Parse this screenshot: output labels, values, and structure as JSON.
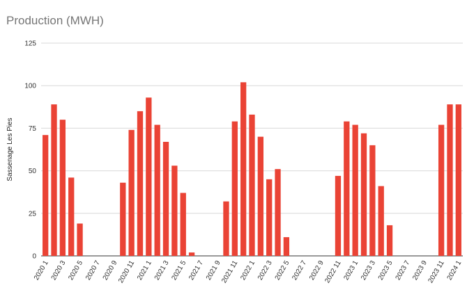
{
  "chart_data": {
    "type": "bar",
    "title": "Production (MWH)",
    "xlabel": "",
    "ylabel": "Sassenage Les Pies",
    "ylim": [
      0,
      125
    ],
    "yticks": [
      "0",
      "25",
      "50",
      "75",
      "100",
      "125"
    ],
    "grid": true,
    "legend": "none",
    "bar_color": "#ea4335",
    "categories": [
      "2020 1",
      "2020 2",
      "2020 3",
      "2020 4",
      "2020 5",
      "2020 6",
      "2020 7",
      "2020 8",
      "2020 9",
      "2020 10",
      "2020 11",
      "2020 12",
      "2021 1",
      "2021 2",
      "2021 3",
      "2021 4",
      "2021 5",
      "2021 6",
      "2021 7",
      "2021 8",
      "2021 9",
      "2021 10",
      "2021 11",
      "2021 12",
      "2022 1",
      "2022 2",
      "2022 3",
      "2022 4",
      "2022 5",
      "2022 6",
      "2022 7",
      "2022 8",
      "2022 9",
      "2022 10",
      "2022 11",
      "2022 12",
      "2023 1",
      "2023 2",
      "2023 3",
      "2023 4",
      "2023 5",
      "2023 6",
      "2023 7",
      "2023 8",
      "2023 9",
      "2023 10",
      "2023 11",
      "2023 12",
      "2024 1"
    ],
    "x_tick_labels": [
      "2020 1",
      "2020 3",
      "2020 5",
      "2020 7",
      "2020 9",
      "2020 11",
      "2021 1",
      "2021 3",
      "2021 5",
      "2021 7",
      "2021 9",
      "2021 11",
      "2022 1",
      "2022 3",
      "2022 5",
      "2022 7",
      "2022 9",
      "2022 11",
      "2023 1",
      "2023 3",
      "2023 5",
      "2023 7",
      "2023 9",
      "2023 11",
      "2024 1"
    ],
    "values": [
      71,
      89,
      80,
      46,
      19,
      0,
      0,
      0,
      0,
      43,
      74,
      85,
      93,
      77,
      67,
      53,
      37,
      2,
      0,
      0,
      0,
      32,
      79,
      102,
      83,
      70,
      45,
      51,
      11,
      0,
      0,
      0,
      0,
      0,
      47,
      79,
      77,
      72,
      65,
      41,
      18,
      0,
      0,
      0,
      0,
      0,
      77,
      89,
      89
    ]
  }
}
